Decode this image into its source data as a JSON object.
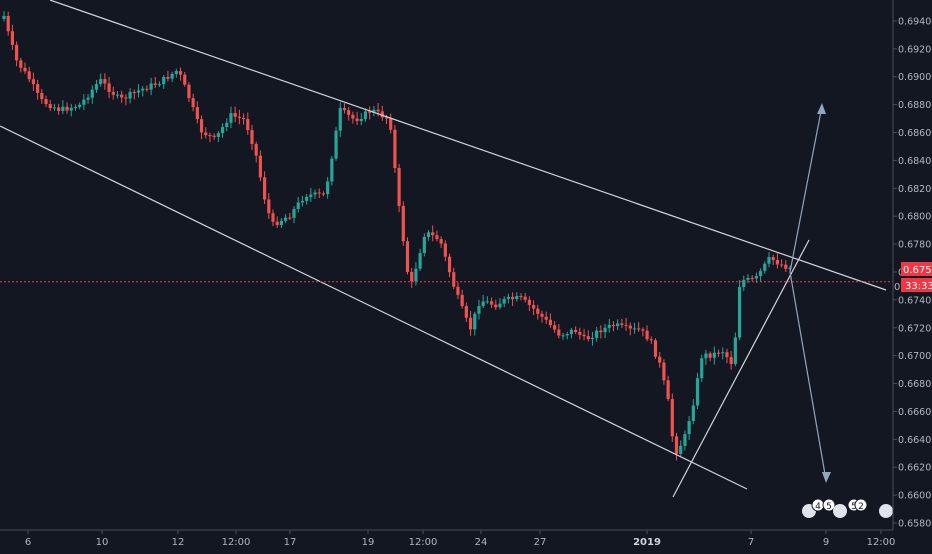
{
  "chart_data": {
    "type": "candlestick",
    "title": "",
    "xlabel": "",
    "ylabel": "",
    "ylim": [
      0.6575,
      0.6955
    ],
    "y_ticks": [
      "0.69400",
      "0.69200",
      "0.69000",
      "0.68800",
      "0.68600",
      "0.68400",
      "0.68200",
      "0.68000",
      "0.67800",
      "0.67600",
      "0.67400",
      "0.67200",
      "0.67000",
      "0.66800",
      "0.66600",
      "0.66400",
      "0.66200",
      "0.66000",
      "0.65800"
    ],
    "x_ticks": [
      "6",
      "10",
      "12",
      "12:00",
      "17",
      "19",
      "12:00",
      "24",
      "27",
      "2019",
      "7",
      "9",
      "12:00"
    ],
    "current_price": "0.67530",
    "countdown": "33:33",
    "bull_color": "#26a69a",
    "bear_color": "#ef5350",
    "price_line_color": "#f23645",
    "closes": [
      0.6924,
      0.6928,
      0.6912,
      0.69,
      0.6892,
      0.688,
      0.6872,
      0.6862,
      0.6866,
      0.6875,
      0.688,
      0.6876,
      0.6871,
      0.6868,
      0.6874,
      0.6883,
      0.6879,
      0.6872,
      0.6866,
      0.6858,
      0.685,
      0.6862,
      0.687,
      0.6885,
      0.6898,
      0.6892,
      0.688,
      0.6876,
      0.6882,
      0.6885,
      0.6878,
      0.687,
      0.6863,
      0.687,
      0.688,
      0.6898,
      0.689,
      0.6875,
      0.6882,
      0.6894,
      0.6886,
      0.6878,
      0.6868,
      0.6858,
      0.685,
      0.6846,
      0.6852,
      0.6858,
      0.6855,
      0.6866,
      0.6876,
      0.687,
      0.686,
      0.6855,
      0.685,
      0.6842,
      0.6825,
      0.681,
      0.68,
      0.6792,
      0.6785,
      0.679,
      0.6798,
      0.6794,
      0.68,
      0.6808,
      0.6814,
      0.6806,
      0.6801,
      0.6804,
      0.6808,
      0.683,
      0.6848,
      0.6866,
      0.6876,
      0.6872,
      0.6864,
      0.6852,
      0.6856,
      0.6862,
      0.6868,
      0.6872,
      0.6866,
      0.686,
      0.685,
      0.6835,
      0.681,
      0.6785,
      0.676,
      0.674,
      0.6728,
      0.6745,
      0.6765,
      0.6785,
      0.6782,
      0.6775,
      0.6788,
      0.6784,
      0.6778,
      0.677,
      0.6752,
      0.6733,
      0.672,
      0.671,
      0.6718,
      0.6726,
      0.6736,
      0.674,
      0.6735,
      0.6728,
      0.6722,
      0.673,
      0.6738,
      0.6732,
      0.6725,
      0.672,
      0.6728,
      0.6736,
      0.6733,
      0.6725,
      0.6715,
      0.6706,
      0.67,
      0.6704,
      0.6712,
      0.6718,
      0.6712,
      0.6706,
      0.67,
      0.6697,
      0.6702,
      0.6708,
      0.6712,
      0.6706,
      0.6703,
      0.6708,
      0.6713,
      0.6709,
      0.6704,
      0.6708,
      0.6712,
      0.6716,
      0.6714,
      0.6709,
      0.6712,
      0.6716,
      0.6713,
      0.6706,
      0.6695,
      0.668,
      0.6665,
      0.6648,
      0.6628,
      0.6598,
      0.662,
      0.664,
      0.663,
      0.664,
      0.6652,
      0.6668,
      0.668,
      0.6692,
      0.67,
      0.6694,
      0.6688,
      0.6696,
      0.6702,
      0.6694,
      0.6678,
      0.669,
      0.6712,
      0.673,
      0.6742,
      0.6738,
      0.674,
      0.6745,
      0.675,
      0.6748,
      0.6752,
      0.6758,
      0.6762,
      0.6756,
      0.676,
      0.6766,
      0.6762,
      0.6758,
      0.6754,
      0.6753
    ]
  }
}
